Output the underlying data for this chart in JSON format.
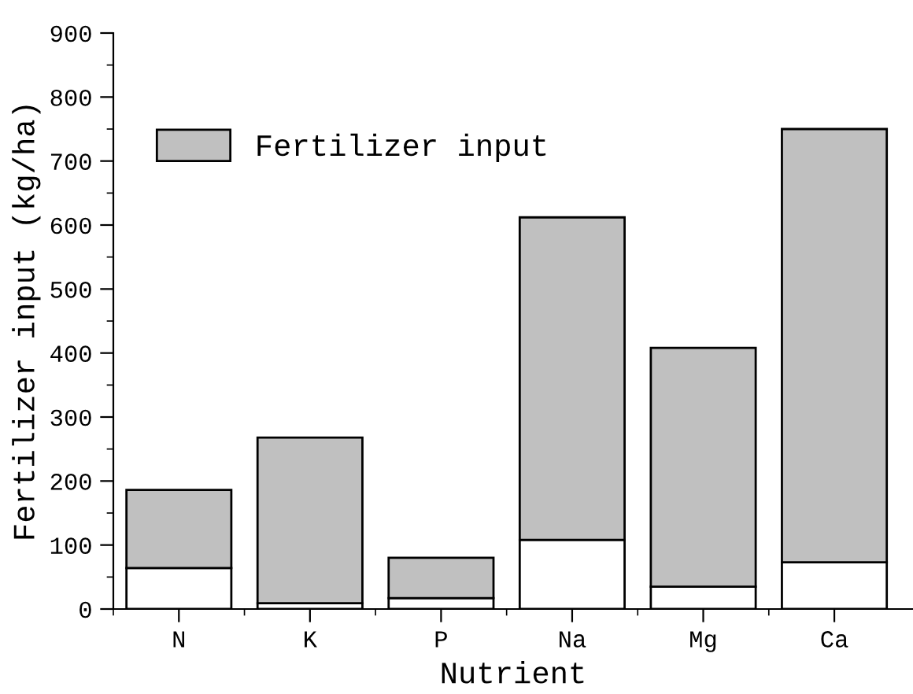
{
  "chart_data": {
    "type": "bar",
    "stacked": true,
    "xlabel": "Nutrient",
    "ylabel": "Fertilizer input (kg/ha)",
    "categories": [
      "N",
      "K",
      "P",
      "Na",
      "Mg",
      "Ca"
    ],
    "series": [
      {
        "color": "#ffffff",
        "values": [
          64,
          9,
          17,
          108,
          35,
          73
        ]
      },
      {
        "name": "Fertilizer input",
        "color": "#c0c0c0",
        "values": [
          122,
          259,
          63,
          504,
          373,
          677
        ]
      }
    ],
    "ylim": [
      0,
      900
    ],
    "yticks": [
      0,
      {
        "value": 50,
        "label": null
      },
      100,
      {
        "value": 150,
        "label": null
      },
      200,
      {
        "value": 250,
        "label": null
      },
      300,
      {
        "value": 350,
        "label": null
      },
      400,
      {
        "value": 450,
        "label": null
      },
      500,
      {
        "value": 550,
        "label": null
      },
      600,
      {
        "value": 650,
        "label": null
      },
      700,
      {
        "value": 750,
        "label": null
      },
      800,
      {
        "value": 850,
        "label": null
      },
      900
    ],
    "grid": false,
    "legend": "top left"
  }
}
